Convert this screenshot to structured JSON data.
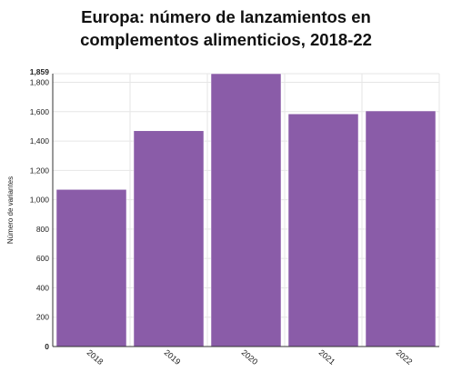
{
  "chart_data": {
    "type": "bar",
    "title_line1": "Europa: número de lanzamientos en",
    "title_line2": "complementos alimenticios, 2018-22",
    "xlabel": "",
    "ylabel": "Número de variantes",
    "categories": [
      "2018",
      "2019",
      "2020",
      "2021",
      "2022"
    ],
    "values": [
      1070,
      1470,
      1859,
      1585,
      1605
    ],
    "ylim": [
      0,
      1859
    ],
    "yticks": [
      0,
      200,
      400,
      600,
      800,
      1000,
      1200,
      1400,
      1600,
      1800,
      1859
    ],
    "ytick_labels": [
      "0",
      "200",
      "400",
      "600",
      "800",
      "1,000",
      "1,200",
      "1,400",
      "1,600",
      "1,800",
      "1,859"
    ],
    "grid": true,
    "legend": "none",
    "colors": {
      "bar": "#8a5ca8",
      "bar_edge": "#ffffff",
      "grid": "#e6e6e6",
      "axis": "#333333"
    }
  }
}
